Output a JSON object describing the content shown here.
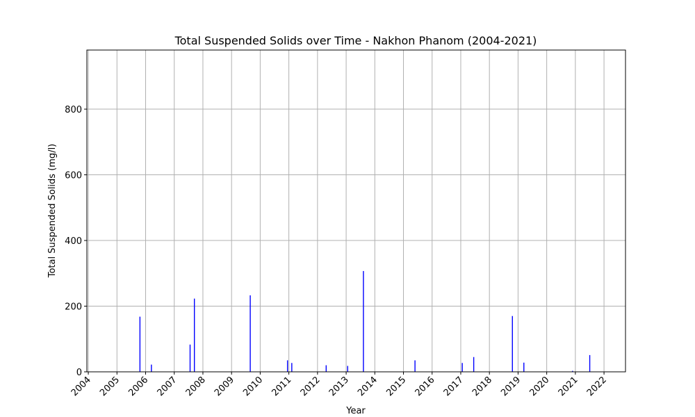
{
  "chart_data": {
    "type": "bar",
    "title": "Total Suspended Solids over Time - Nakhon Phanom (2004-2021)",
    "xlabel": "Year",
    "ylabel": "Total Suspended Solids (mg/l)",
    "xlim": [
      2003.95,
      2022.75
    ],
    "ylim": [
      0,
      980
    ],
    "x_ticks": [
      "2004",
      "2005",
      "2006",
      "2007",
      "2008",
      "2009",
      "2010",
      "2011",
      "2012",
      "2013",
      "2014",
      "2015",
      "2016",
      "2017",
      "2018",
      "2019",
      "2020",
      "2021",
      "2022"
    ],
    "y_ticks": [
      0,
      200,
      400,
      600,
      800
    ],
    "grid": true,
    "bar_color": "#0000ff",
    "series": [
      {
        "x": [
          2005.8,
          2006.2,
          2007.55,
          2007.7,
          2009.65,
          2010.95,
          2011.1,
          2012.3,
          2013.05,
          2013.6,
          2015.4,
          2017.05,
          2017.45,
          2018.8,
          2019.2,
          2020.9,
          2021.5
        ],
        "values": [
          168,
          22,
          83,
          223,
          233,
          35,
          27,
          20,
          18,
          307,
          35,
          27,
          45,
          170,
          28,
          3,
          51
        ]
      }
    ]
  }
}
